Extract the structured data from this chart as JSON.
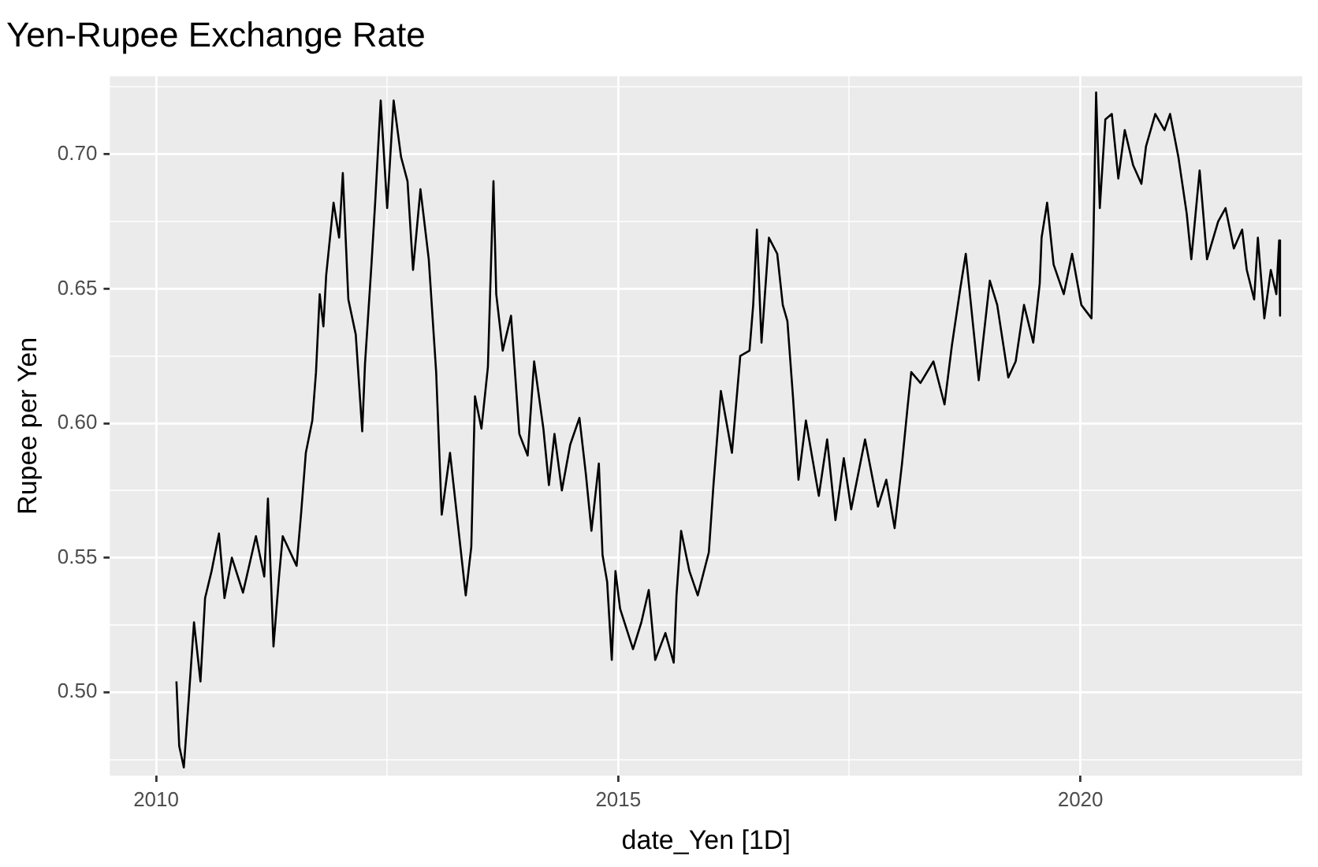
{
  "chart_data": {
    "type": "line",
    "title": "Yen-Rupee Exchange Rate",
    "xlabel": "date_Yen [1D]",
    "ylabel": "Rupee per Yen",
    "x": [
      2010.22,
      2010.25,
      2010.3,
      2010.36,
      2010.41,
      2010.48,
      2010.53,
      2010.6,
      2010.68,
      2010.74,
      2010.82,
      2010.94,
      2011.08,
      2011.17,
      2011.21,
      2011.27,
      2011.33,
      2011.37,
      2011.52,
      2011.57,
      2011.62,
      2011.69,
      2011.73,
      2011.77,
      2011.81,
      2011.84,
      2011.92,
      2011.98,
      2012.02,
      2012.08,
      2012.16,
      2012.23,
      2012.26,
      2012.33,
      2012.37,
      2012.43,
      2012.5,
      2012.57,
      2012.65,
      2012.72,
      2012.78,
      2012.86,
      2012.95,
      2013.03,
      2013.09,
      2013.18,
      2013.26,
      2013.35,
      2013.41,
      2013.45,
      2013.52,
      2013.59,
      2013.65,
      2013.68,
      2013.75,
      2013.84,
      2013.93,
      2014.02,
      2014.09,
      2014.19,
      2014.25,
      2014.31,
      2014.39,
      2014.48,
      2014.58,
      2014.65,
      2014.71,
      2014.79,
      2014.83,
      2014.88,
      2014.93,
      2014.97,
      2015.02,
      2015.16,
      2015.25,
      2015.33,
      2015.4,
      2015.51,
      2015.6,
      2015.63,
      2015.68,
      2015.77,
      2015.86,
      2015.98,
      2016.03,
      2016.11,
      2016.23,
      2016.32,
      2016.42,
      2016.46,
      2016.5,
      2016.55,
      2016.63,
      2016.72,
      2016.78,
      2016.83,
      2016.89,
      2016.95,
      2017.03,
      2017.17,
      2017.26,
      2017.35,
      2017.44,
      2017.52,
      2017.67,
      2017.81,
      2017.9,
      2017.99,
      2018.07,
      2018.13,
      2018.17,
      2018.27,
      2018.41,
      2018.53,
      2018.61,
      2018.7,
      2018.76,
      2018.84,
      2018.9,
      2019.02,
      2019.1,
      2019.22,
      2019.3,
      2019.39,
      2019.49,
      2019.56,
      2019.58,
      2019.64,
      2019.71,
      2019.82,
      2019.91,
      2020.01,
      2020.12,
      2020.14,
      2020.17,
      2020.21,
      2020.27,
      2020.34,
      2020.41,
      2020.48,
      2020.57,
      2020.66,
      2020.71,
      2020.81,
      2020.91,
      2020.97,
      2021.06,
      2021.15,
      2021.2,
      2021.29,
      2021.37,
      2021.49,
      2021.57,
      2021.66,
      2021.75,
      2021.8,
      2021.88,
      2021.92,
      2021.99,
      2022.06,
      2022.12,
      2022.15,
      2022.16
    ],
    "series": [
      {
        "color": "#000000",
        "values": [
          0.504,
          0.48,
          0.472,
          0.501,
          0.526,
          0.504,
          0.535,
          0.545,
          0.559,
          0.535,
          0.55,
          0.537,
          0.558,
          0.543,
          0.572,
          0.517,
          0.543,
          0.558,
          0.547,
          0.567,
          0.589,
          0.601,
          0.619,
          0.648,
          0.636,
          0.655,
          0.682,
          0.669,
          0.693,
          0.646,
          0.633,
          0.597,
          0.622,
          0.659,
          0.682,
          0.72,
          0.68,
          0.72,
          0.699,
          0.69,
          0.657,
          0.687,
          0.661,
          0.619,
          0.566,
          0.589,
          0.564,
          0.536,
          0.554,
          0.61,
          0.598,
          0.621,
          0.69,
          0.648,
          0.627,
          0.64,
          0.596,
          0.588,
          0.623,
          0.598,
          0.577,
          0.596,
          0.575,
          0.592,
          0.602,
          0.581,
          0.56,
          0.585,
          0.551,
          0.541,
          0.512,
          0.545,
          0.531,
          0.516,
          0.526,
          0.538,
          0.512,
          0.522,
          0.511,
          0.536,
          0.56,
          0.545,
          0.536,
          0.552,
          0.577,
          0.612,
          0.589,
          0.625,
          0.627,
          0.644,
          0.672,
          0.63,
          0.669,
          0.663,
          0.644,
          0.638,
          0.61,
          0.579,
          0.601,
          0.573,
          0.594,
          0.564,
          0.587,
          0.568,
          0.594,
          0.569,
          0.579,
          0.561,
          0.585,
          0.606,
          0.619,
          0.615,
          0.623,
          0.607,
          0.629,
          0.65,
          0.663,
          0.636,
          0.616,
          0.653,
          0.644,
          0.617,
          0.623,
          0.644,
          0.63,
          0.652,
          0.669,
          0.682,
          0.659,
          0.648,
          0.663,
          0.644,
          0.639,
          0.667,
          0.723,
          0.68,
          0.713,
          0.715,
          0.691,
          0.709,
          0.696,
          0.689,
          0.703,
          0.715,
          0.709,
          0.715,
          0.699,
          0.678,
          0.661,
          0.694,
          0.661,
          0.675,
          0.68,
          0.665,
          0.672,
          0.657,
          0.646,
          0.669,
          0.639,
          0.657,
          0.648,
          0.668,
          0.64
        ]
      }
    ],
    "xlim": [
      2009.5,
      2022.4
    ],
    "xticks": [
      2010,
      {
        "value": 2012.5,
        "label": null
      },
      2015,
      {
        "value": 2017.5,
        "label": null
      },
      2020
    ],
    "ylim": [
      0.469,
      0.729
    ],
    "yticks": [
      {
        "value": 0.475,
        "label": null
      },
      {
        "value": 0.5,
        "label": "0.50"
      },
      {
        "value": 0.525,
        "label": null
      },
      {
        "value": 0.55,
        "label": "0.55"
      },
      {
        "value": 0.575,
        "label": null
      },
      {
        "value": 0.6,
        "label": "0.60"
      },
      {
        "value": 0.625,
        "label": null
      },
      {
        "value": 0.65,
        "label": "0.65"
      },
      {
        "value": 0.675,
        "label": null
      },
      {
        "value": 0.7,
        "label": "0.70"
      },
      {
        "value": 0.725,
        "label": null
      }
    ],
    "grid": true,
    "legend": false,
    "line_style": "solid"
  }
}
